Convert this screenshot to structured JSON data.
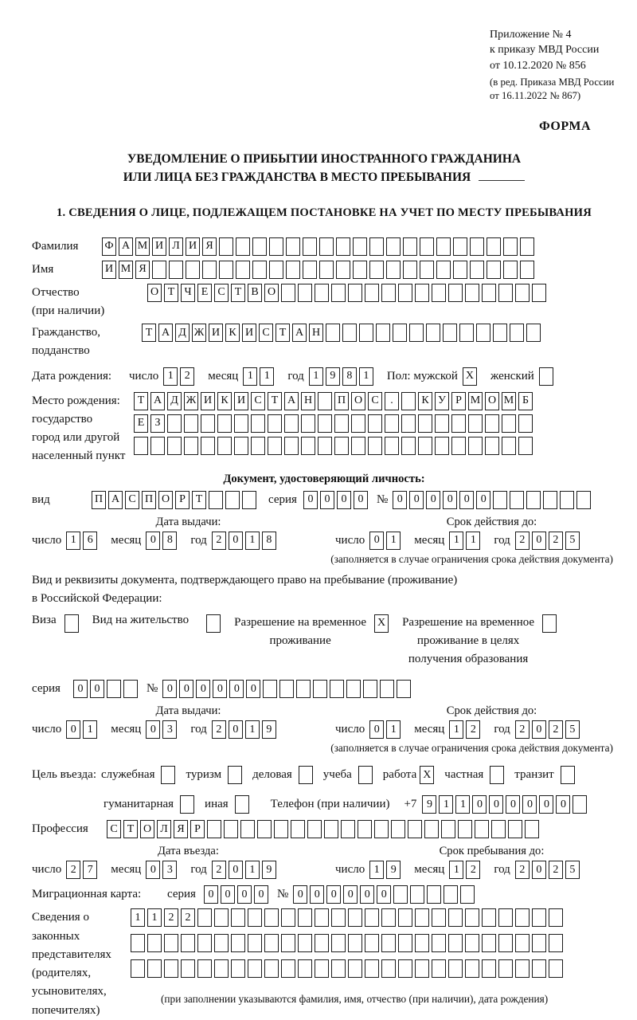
{
  "header": {
    "appendix": [
      "Приложение № 4",
      "к приказу МВД России",
      "от 10.12.2020 № 856"
    ],
    "revision": [
      "(в ред. Приказа МВД России",
      "от 16.11.2022 № 867)"
    ],
    "form_label": "ФОРМА"
  },
  "title": {
    "line1": "УВЕДОМЛЕНИЕ О ПРИБЫТИИ ИНОСТРАННОГО ГРАЖДАНИНА",
    "line2": "ИЛИ ЛИЦА БЕЗ ГРАЖДАНСТВА В МЕСТО ПРЕБЫВАНИЯ"
  },
  "section1_heading": "1. СВЕДЕНИЯ О ЛИЦЕ, ПОДЛЕЖАЩЕМ ПОСТАНОВКЕ НА УЧЕТ ПО МЕСТУ ПРЕБЫВАНИЯ",
  "date_labels": {
    "day": "число",
    "month": "месяц",
    "year": "год"
  },
  "fields": {
    "surname": {
      "label": "Фамилия",
      "value": "ФАМИЛИЯ",
      "count": 26
    },
    "given_name": {
      "label": "Имя",
      "value": "ИМЯ",
      "count": 26
    },
    "patronymic": {
      "label_lines": [
        "Отчество",
        "(при наличии)"
      ],
      "value": "ОТЧЕСТВО",
      "count": 24
    },
    "citizenship": {
      "label_lines": [
        "Гражданство,",
        "подданство"
      ],
      "value": "ТАДЖИКИСТАН",
      "count": 24
    },
    "birth_date": {
      "label": "Дата рождения:",
      "day": "12",
      "month": "11",
      "year": "1981"
    },
    "sex": {
      "label": "Пол: мужской",
      "male_box": {
        "value": "X",
        "count": 1
      },
      "female_label": "женский",
      "female_box": {
        "value": "",
        "count": 1
      }
    },
    "birth_place": {
      "label_lines": [
        "Место рождения:",
        "государство",
        "город или другой",
        "населенный пункт"
      ],
      "rows": [
        {
          "value": "ТАДЖИКИСТАН ПОС. КУРМОМБ",
          "count": 24
        },
        {
          "value": "ЕЗ",
          "count": 24
        },
        {
          "value": "",
          "count": 24
        }
      ]
    }
  },
  "identity_doc": {
    "heading": "Документ, удостоверяющий личность:",
    "type": {
      "label": "вид",
      "value": "ПАСПОРТ",
      "count": 10
    },
    "series": {
      "label": "серия",
      "value": "0000",
      "count": 4
    },
    "number": {
      "label": "№",
      "value": "000000",
      "count": 12
    },
    "issue": {
      "heading": "Дата выдачи:",
      "day": "16",
      "month": "08",
      "year": "2018"
    },
    "valid": {
      "heading": "Срок действия до:",
      "day": "01",
      "month": "11",
      "year": "2025"
    },
    "note": "(заполняется в случае ограничения срока действия документа)"
  },
  "stay_doc": {
    "intro_line1": "Вид и реквизиты документа, подтверждающего право на пребывание (проживание)",
    "intro_line2": "в Российской Федерации:",
    "visa": {
      "label": "Виза",
      "box": {
        "value": "",
        "count": 1
      }
    },
    "residence_permit": {
      "label": "Вид на жительство",
      "box": {
        "value": "",
        "count": 1
      }
    },
    "temp_residence": {
      "label_lines": [
        "Разрешение на временное",
        "проживание"
      ],
      "box": {
        "value": "X",
        "count": 1
      }
    },
    "temp_residence_edu": {
      "label_lines": [
        "Разрешение на временное",
        "проживание в целях",
        "получения образования"
      ],
      "box": {
        "value": "",
        "count": 1
      }
    },
    "series": {
      "label": "серия",
      "value": "00",
      "count": 4
    },
    "number": {
      "label": "№",
      "value": "000000",
      "count": 15
    },
    "issue": {
      "heading": "Дата выдачи:",
      "day": "01",
      "month": "03",
      "year": "2019"
    },
    "valid": {
      "heading": "Срок действия до:",
      "day": "01",
      "month": "12",
      "year": "2025"
    },
    "note": "(заполняется в случае ограничения срока действия документа)"
  },
  "visit_purpose": {
    "label": "Цель въезда:",
    "options": [
      {
        "label": "служебная",
        "box": {
          "value": "",
          "count": 1
        }
      },
      {
        "label": "туризм",
        "box": {
          "value": "",
          "count": 1
        }
      },
      {
        "label": "деловая",
        "box": {
          "value": "",
          "count": 1
        }
      },
      {
        "label": "учеба",
        "box": {
          "value": "",
          "count": 1
        }
      },
      {
        "label": "работа",
        "box": {
          "value": "X",
          "count": 1
        }
      },
      {
        "label": "частная",
        "box": {
          "value": "",
          "count": 1
        }
      },
      {
        "label": "транзит",
        "box": {
          "value": "",
          "count": 1
        }
      }
    ],
    "options2": [
      {
        "label": "гуманитарная",
        "box": {
          "value": "",
          "count": 1
        }
      },
      {
        "label": "иная",
        "box": {
          "value": "",
          "count": 1
        }
      }
    ]
  },
  "phone": {
    "label": "Телефон (при наличии)",
    "prefix": "+7",
    "value": "911000000",
    "count": 10
  },
  "profession": {
    "label": "Профессия",
    "value": "СТОЛЯР",
    "count": 26
  },
  "entry": {
    "issue": {
      "heading": "Дата въезда:",
      "day": "27",
      "month": "03",
      "year": "2019"
    },
    "valid": {
      "heading": "Срок пребывания до:",
      "day": "19",
      "month": "12",
      "year": "2025"
    }
  },
  "migration_card": {
    "label": "Миграционная карта:",
    "series": {
      "label": "серия",
      "value": "0000",
      "count": 4
    },
    "number": {
      "label": "№",
      "value": "000000",
      "count": 11
    }
  },
  "legal_representatives": {
    "label_lines": [
      "Сведения о",
      "законных",
      "представителях",
      "(родителях,",
      "усыновителях,",
      "попечителях)"
    ],
    "rows": [
      {
        "value": "1122",
        "count": 26
      },
      {
        "value": "",
        "count": 26
      },
      {
        "value": "",
        "count": 26
      }
    ],
    "note": "(при заполнении указываются фамилия, имя, отчество (при наличии), дата рождения)"
  }
}
